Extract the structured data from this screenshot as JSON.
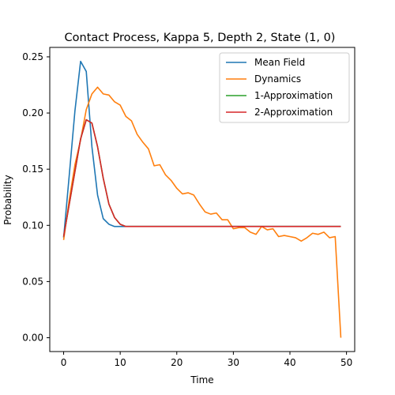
{
  "chart_data": {
    "type": "line",
    "title": "Contact Process, Kappa 5, Depth 2, State (1, 0)",
    "xlabel": "Time",
    "ylabel": "Probability",
    "xlim": [
      -2.45,
      51.45
    ],
    "ylim": [
      -0.0123,
      0.2584
    ],
    "xticks": [
      0,
      10,
      20,
      30,
      40,
      50
    ],
    "xtick_labels": [
      "0",
      "10",
      "20",
      "30",
      "40",
      "50"
    ],
    "yticks": [
      0.0,
      0.05,
      0.1,
      0.15,
      0.2,
      0.25
    ],
    "ytick_labels": [
      "0.00",
      "0.05",
      "0.10",
      "0.15",
      "0.20",
      "0.25"
    ],
    "grid": false,
    "legend_position": "top-right",
    "x": [
      0,
      1,
      2,
      3,
      4,
      5,
      6,
      7,
      8,
      9,
      10,
      11,
      12,
      13,
      14,
      15,
      16,
      17,
      18,
      19,
      20,
      21,
      22,
      23,
      24,
      25,
      26,
      27,
      28,
      29,
      30,
      31,
      32,
      33,
      34,
      35,
      36,
      37,
      38,
      39,
      40,
      41,
      42,
      43,
      44,
      45,
      46,
      47,
      48,
      49
    ],
    "series": [
      {
        "name": "Mean Field",
        "color": "#1f77b4",
        "values": [
          0.089,
          0.145,
          0.202,
          0.246,
          0.237,
          0.17,
          0.127,
          0.106,
          0.101,
          0.099,
          0.099,
          0.099,
          0.099,
          0.099,
          0.099,
          0.099,
          0.099,
          0.099,
          0.099,
          0.099,
          0.099,
          0.099,
          0.099,
          0.099,
          0.099,
          0.099,
          0.099,
          0.099,
          0.099,
          0.099,
          0.099,
          0.099,
          0.099,
          0.099,
          0.099,
          0.099,
          0.099,
          0.099,
          0.099,
          0.099,
          0.099,
          0.099,
          0.099,
          0.099,
          0.099,
          0.099,
          0.099,
          0.099,
          0.099,
          0.099
        ]
      },
      {
        "name": "Dynamics",
        "color": "#ff7f0e",
        "values": [
          0.087,
          0.123,
          0.154,
          0.176,
          0.203,
          0.217,
          0.223,
          0.217,
          0.216,
          0.21,
          0.207,
          0.197,
          0.193,
          0.181,
          0.174,
          0.168,
          0.153,
          0.154,
          0.145,
          0.14,
          0.133,
          0.128,
          0.129,
          0.127,
          0.119,
          0.112,
          0.11,
          0.111,
          0.105,
          0.105,
          0.097,
          0.098,
          0.098,
          0.094,
          0.092,
          0.099,
          0.096,
          0.097,
          0.09,
          0.091,
          0.09,
          0.089,
          0.086,
          0.089,
          0.093,
          0.092,
          0.094,
          0.089,
          0.09,
          0.0
        ]
      },
      {
        "name": "1-Approximation",
        "color": "#2ca02c",
        "values": [
          0.09,
          0.119,
          0.148,
          0.177,
          0.194,
          0.191,
          0.17,
          0.142,
          0.119,
          0.107,
          0.101,
          0.099,
          0.099,
          0.099,
          0.099,
          0.099,
          0.099,
          0.099,
          0.099,
          0.099,
          0.099,
          0.099,
          0.099,
          0.099,
          0.099,
          0.099,
          0.099,
          0.099,
          0.099,
          0.099,
          0.099,
          0.099,
          0.099,
          0.099,
          0.099,
          0.099,
          0.099,
          0.099,
          0.099,
          0.099,
          0.099,
          0.099,
          0.099,
          0.099,
          0.099,
          0.099,
          0.099,
          0.099,
          0.099,
          0.099
        ]
      },
      {
        "name": "2-Approximation",
        "color": "#d62728",
        "values": [
          0.09,
          0.119,
          0.148,
          0.177,
          0.194,
          0.191,
          0.17,
          0.142,
          0.119,
          0.107,
          0.101,
          0.099,
          0.099,
          0.099,
          0.099,
          0.099,
          0.099,
          0.099,
          0.099,
          0.099,
          0.099,
          0.099,
          0.099,
          0.099,
          0.099,
          0.099,
          0.099,
          0.099,
          0.099,
          0.099,
          0.099,
          0.099,
          0.099,
          0.099,
          0.099,
          0.099,
          0.099,
          0.099,
          0.099,
          0.099,
          0.099,
          0.099,
          0.099,
          0.099,
          0.099,
          0.099,
          0.099,
          0.099,
          0.099,
          0.099
        ]
      }
    ]
  }
}
